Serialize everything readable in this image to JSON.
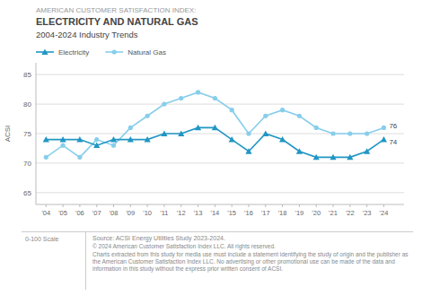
{
  "chart_data": {
    "type": "line",
    "supertitle": "AMERICAN CUSTOMER SATISFACTION INDEX:",
    "title": "ELECTRICITY AND NATURAL GAS",
    "subtitle": "2004-2024 Industry Trends",
    "y_label": "ACSI",
    "x": [
      2004,
      2005,
      2006,
      2007,
      2008,
      2009,
      2010,
      2011,
      2012,
      2013,
      2014,
      2015,
      2016,
      2017,
      2018,
      2019,
      2020,
      2021,
      2022,
      2023,
      2024
    ],
    "series": [
      {
        "name": "Electricity",
        "color": "#2196c4",
        "marker": "triangle",
        "line_style": "solid",
        "values": [
          74,
          74,
          74,
          73,
          74,
          74,
          74,
          75,
          75,
          76,
          76,
          74,
          72,
          75,
          74,
          72,
          71,
          71,
          71,
          72,
          74
        ]
      },
      {
        "name": "Natural Gas",
        "color": "#87ceeb",
        "marker": "circle",
        "line_style": "solid",
        "values": [
          71,
          73,
          71,
          74,
          73,
          76,
          78,
          80,
          81,
          82,
          81,
          79,
          75,
          78,
          79,
          78,
          76,
          75,
          75,
          75,
          76
        ]
      }
    ],
    "xlim": [
      2003.4,
      2025.2
    ],
    "xticks": [
      {
        "value": 2004,
        "label": "'04"
      },
      {
        "value": 2005,
        "label": "'05"
      },
      {
        "value": 2006,
        "label": "'06"
      },
      {
        "value": 2007,
        "label": "'07"
      },
      {
        "value": 2008,
        "label": "'08"
      },
      {
        "value": 2009,
        "label": "'09"
      },
      {
        "value": 2010,
        "label": "'10"
      },
      {
        "value": 2011,
        "label": "'11"
      },
      {
        "value": 2012,
        "label": "'12"
      },
      {
        "value": 2013,
        "label": "'13"
      },
      {
        "value": 2014,
        "label": "'14"
      },
      {
        "value": 2015,
        "label": "'15"
      },
      {
        "value": 2016,
        "label": "'16"
      },
      {
        "value": 2017,
        "label": "'17"
      },
      {
        "value": 2018,
        "label": "'18"
      },
      {
        "value": 2019,
        "label": "'19"
      },
      {
        "value": 2020,
        "label": "'20"
      },
      {
        "value": 2021,
        "label": "'21"
      },
      {
        "value": 2022,
        "label": "'22"
      },
      {
        "value": 2023,
        "label": "'23"
      },
      {
        "value": 2024,
        "label": "'24"
      }
    ],
    "ylim": [
      63,
      87
    ],
    "yticks": [
      65,
      70,
      75,
      80,
      85
    ],
    "grid": true,
    "legend": "top",
    "annotations": [
      {
        "text": "76",
        "x": 2024,
        "y": 76
      },
      {
        "text": "74",
        "x": 2024,
        "y": 74
      }
    ],
    "footnotes": [
      "0-100 Scale",
      "Source: ACSI Energy Utilities Study 2023-2024.",
      "© 2024 American Customer Satisfaction Index LLC. All rights reserved.",
      "Charts extracted from this study for media use must include a statement identifying the study of origin and the publisher as the American Customer Satisfaction Index LLC. No advertising or other promotional use can be made of the data and information in this study without the express prior written consent of ACSI."
    ]
  }
}
